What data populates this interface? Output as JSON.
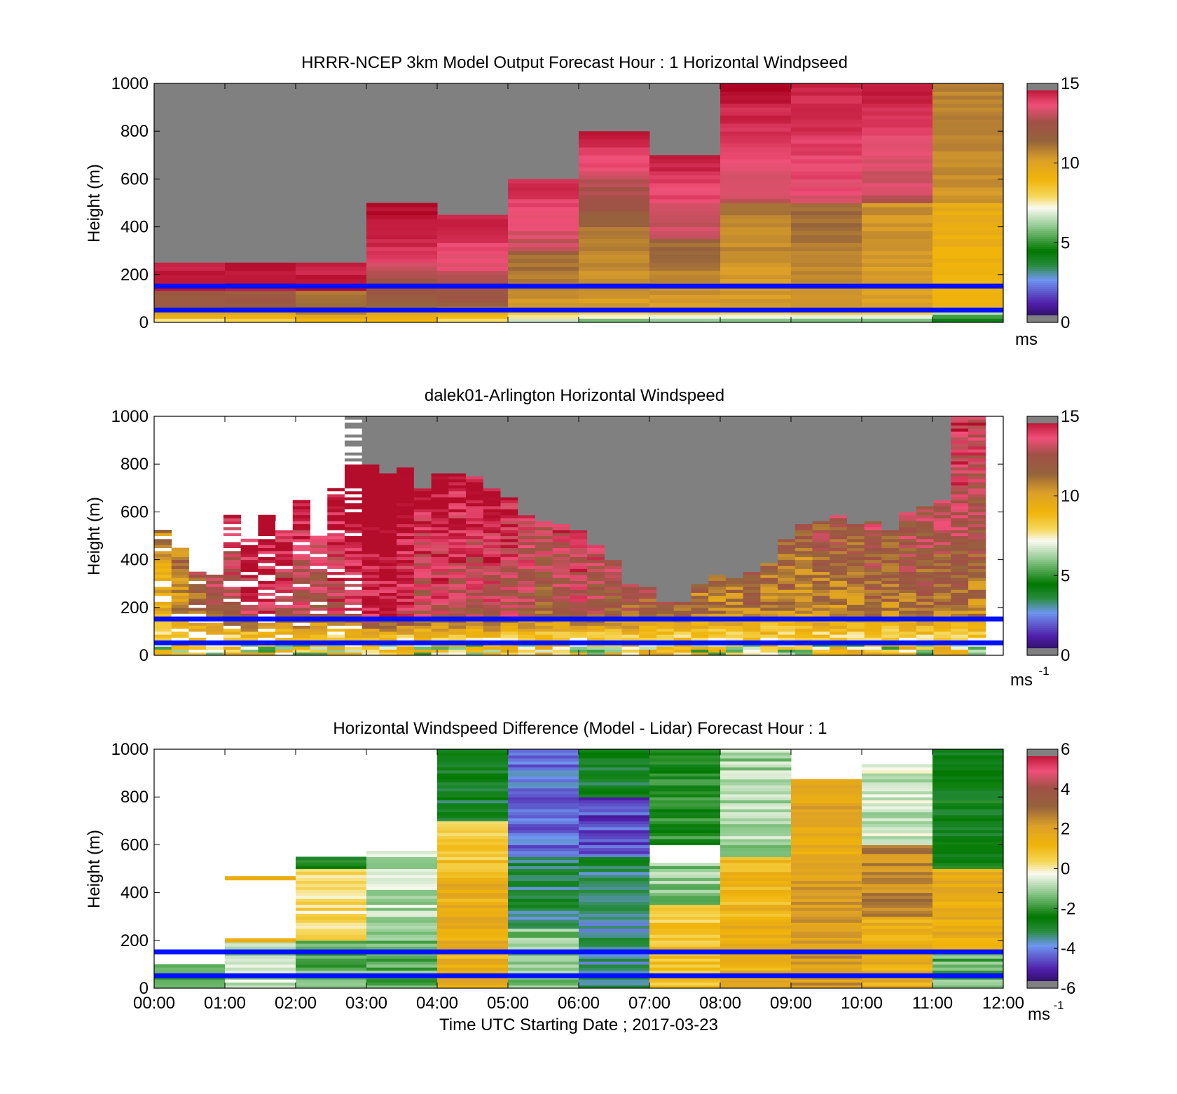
{
  "figure": {
    "xlabel": "Time UTC  Starting Date ; 2017-03-23",
    "xticks": [
      "00:00",
      "01:00",
      "02:00",
      "03:00",
      "04:00",
      "05:00",
      "06:00",
      "07:00",
      "08:00",
      "09:00",
      "10:00",
      "11:00",
      "12:00"
    ],
    "background": "#ffffff",
    "missing_color": "#808080",
    "line_color": "#0010ff"
  },
  "chart_data": [
    {
      "type": "heatmap",
      "title": "HRRR-NCEP 3km Model Output   Forecast Hour : 1 Horizontal Windpseed",
      "ylabel": "Height (m)",
      "yticks": [
        "0",
        "200",
        "400",
        "600",
        "800",
        "1000"
      ],
      "ylim": [
        0,
        1000
      ],
      "x_hours": [
        0,
        12
      ],
      "colorbar": {
        "min": 0,
        "max": 15,
        "ticks": [
          "0",
          "5",
          "10",
          "15"
        ],
        "unit": "ms"
      },
      "blue_lines_m": [
        152,
        52
      ],
      "columns": [
        {
          "t": "00:00",
          "top": 250,
          "low": [
            8,
            12
          ],
          "mid": [
            12,
            14.5
          ],
          "high": [
            14.5,
            14.5
          ]
        },
        {
          "t": "01:00",
          "top": 250,
          "low": [
            8,
            12
          ],
          "mid": [
            12,
            14.5
          ],
          "high": [
            14.5,
            14.5
          ]
        },
        {
          "t": "02:00",
          "top": 250,
          "low": [
            9,
            12
          ],
          "mid": [
            11,
            14.5
          ],
          "high": [
            14.5,
            14.5
          ]
        },
        {
          "t": "03:00",
          "top": 500,
          "low": [
            9,
            11
          ],
          "mid": [
            13.5,
            14
          ],
          "high": [
            14.5,
            14.8
          ]
        },
        {
          "t": "04:00",
          "top": 450,
          "low": [
            8,
            11
          ],
          "mid": [
            13.5,
            13.5
          ],
          "high": [
            14,
            14.5
          ]
        },
        {
          "t": "05:00",
          "top": 600,
          "low": [
            7,
            10
          ],
          "mid": [
            11.5,
            13
          ],
          "high": [
            13.5,
            14.5
          ]
        },
        {
          "t": "06:00",
          "top": 800,
          "low": [
            6,
            10
          ],
          "mid": [
            11,
            11.5
          ],
          "high": [
            13,
            14.8
          ]
        },
        {
          "t": "07:00",
          "top": 700,
          "low": [
            6,
            10
          ],
          "mid": [
            11.5,
            13
          ],
          "high": [
            13,
            14.5
          ]
        },
        {
          "t": "08:00",
          "top": 1000,
          "low": [
            6,
            10
          ],
          "mid": [
            11,
            13
          ],
          "high": [
            13.5,
            14.8
          ]
        },
        {
          "t": "09:00",
          "top": 1000,
          "low": [
            6,
            10
          ],
          "mid": [
            11.5,
            13.5
          ],
          "high": [
            14,
            14.5
          ]
        },
        {
          "t": "10:00",
          "top": 1000,
          "low": [
            6,
            10
          ],
          "mid": [
            10.5,
            13
          ],
          "high": [
            13.5,
            14.5
          ]
        },
        {
          "t": "11:00",
          "top": 1000,
          "low": [
            4,
            9
          ],
          "mid": [
            9.5,
            10.5
          ],
          "high": [
            11,
            10.8
          ]
        }
      ]
    },
    {
      "type": "heatmap",
      "title": "dalek01-Arlington  Horizontal Windspeed",
      "ylabel": "Height (m)",
      "yticks": [
        "0",
        "200",
        "400",
        "600",
        "800",
        "1000"
      ],
      "ylim": [
        0,
        1000
      ],
      "x_hours": [
        0,
        12
      ],
      "colorbar": {
        "min": 0,
        "max": 15,
        "ticks": [
          "0",
          "5",
          "10",
          "15"
        ],
        "unit": "ms",
        "unit_exp": "-1"
      },
      "blue_lines_m": [
        152,
        52
      ],
      "data_top_m": [
        520,
        440,
        350,
        330,
        580,
        480,
        580,
        560,
        640,
        500,
        700,
        1000,
        1000,
        1000,
        1000,
        1000,
        1000,
        1000,
        1000,
        1000,
        1000,
        1000,
        1000,
        1000,
        1000,
        1000,
        1000,
        1000,
        1000,
        1000,
        1000,
        1000,
        1000,
        1000,
        1000,
        1000,
        1000,
        1000,
        1000,
        1000,
        1000,
        1000,
        1000,
        1000,
        1000,
        1000,
        1000,
        1000
      ],
      "valid_top_m": [
        520,
        440,
        350,
        330,
        580,
        480,
        580,
        560,
        640,
        500,
        700,
        800,
        800,
        760,
        780,
        700,
        760,
        760,
        740,
        700,
        660,
        580,
        560,
        540,
        520,
        460,
        400,
        300,
        280,
        220,
        220,
        290,
        330,
        320,
        350,
        380,
        480,
        540,
        560,
        580,
        540,
        560,
        520,
        600,
        620,
        640,
        1000,
        1000
      ],
      "columns_per_hour": 4,
      "column_mean_speed": [
        8.5,
        9.5,
        10.5,
        11.5,
        12,
        13,
        13,
        12.5,
        12,
        11.5,
        12.5,
        13,
        13.5,
        13.5,
        13,
        12,
        12.5,
        12,
        12,
        12.5,
        12,
        11.5,
        11,
        11.5,
        12,
        11.5,
        11,
        11,
        11,
        11,
        10.5,
        10,
        10,
        10,
        10.5,
        10,
        10,
        9.5,
        10,
        10,
        10,
        10.5,
        10,
        10.5,
        10.5,
        10.5,
        10.5,
        10
      ]
    },
    {
      "type": "heatmap",
      "title": "Horizontal Windspeed Difference (Model - Lidar) Forecast Hour : 1",
      "ylabel": "Height (m)",
      "yticks": [
        "0",
        "200",
        "400",
        "600",
        "800",
        "1000"
      ],
      "ylim": [
        0,
        1000
      ],
      "x_hours": [
        0,
        12
      ],
      "colorbar": {
        "min": -6,
        "max": 6,
        "ticks": [
          "-6",
          "-4",
          "-2",
          "0",
          "2",
          "4",
          "6"
        ],
        "unit": "ms",
        "unit_exp": "-1"
      },
      "blue_lines_m": [
        152,
        52
      ],
      "columns": [
        {
          "t": "00:00",
          "top": 100,
          "segments": [
            [
              0,
              100,
              -1.5
            ]
          ]
        },
        {
          "t": "01:00",
          "top": 200,
          "segments": [
            [
              0,
              200,
              -0.8
            ]
          ],
          "marks": [
            [
              460,
              1.5
            ],
            [
              200,
              1.5
            ]
          ]
        },
        {
          "t": "02:00",
          "top": 550,
          "segments": [
            [
              0,
              200,
              -1.5
            ],
            [
              200,
              500,
              0.3
            ],
            [
              500,
              550,
              -2.5
            ]
          ]
        },
        {
          "t": "03:00",
          "top": 570,
          "segments": [
            [
              0,
              200,
              -1.5
            ],
            [
              200,
              570,
              -0.8
            ]
          ]
        },
        {
          "t": "04:00",
          "top": 1000,
          "segments": [
            [
              0,
              200,
              1.5
            ],
            [
              200,
              450,
              1.5
            ],
            [
              450,
              700,
              0.8
            ],
            [
              700,
              1000,
              -2.8
            ]
          ]
        },
        {
          "t": "05:00",
          "top": 1000,
          "segments": [
            [
              0,
              250,
              -1.2
            ],
            [
              250,
              550,
              -3.2
            ],
            [
              550,
              1000,
              -4.2
            ]
          ]
        },
        {
          "t": "06:00",
          "top": 1000,
          "segments": [
            [
              0,
              400,
              -3.5
            ],
            [
              400,
              550,
              -3.2
            ],
            [
              550,
              800,
              -4.6
            ],
            [
              800,
              1000,
              -2.8
            ]
          ]
        },
        {
          "t": "07:00",
          "top": 1000,
          "segments": [
            [
              0,
              350,
              0.8
            ],
            [
              350,
              520,
              -1.2
            ],
            [
              600,
              1000,
              -2.2
            ]
          ]
        },
        {
          "t": "08:00",
          "top": 1000,
          "segments": [
            [
              0,
              300,
              1.5
            ],
            [
              300,
              550,
              1.2
            ],
            [
              550,
              1000,
              -1.0
            ]
          ]
        },
        {
          "t": "09:00",
          "top": 870,
          "segments": [
            [
              0,
              450,
              2.2
            ],
            [
              450,
              870,
              1.8
            ]
          ]
        },
        {
          "t": "10:00",
          "top": 930,
          "segments": [
            [
              0,
              300,
              1.5
            ],
            [
              300,
              600,
              2.5
            ],
            [
              600,
              930,
              -0.6
            ]
          ]
        },
        {
          "t": "11:00",
          "top": 1000,
          "segments": [
            [
              0,
              150,
              -1.5
            ],
            [
              150,
              500,
              1.5
            ],
            [
              500,
              1000,
              -2.5
            ]
          ]
        }
      ]
    }
  ]
}
